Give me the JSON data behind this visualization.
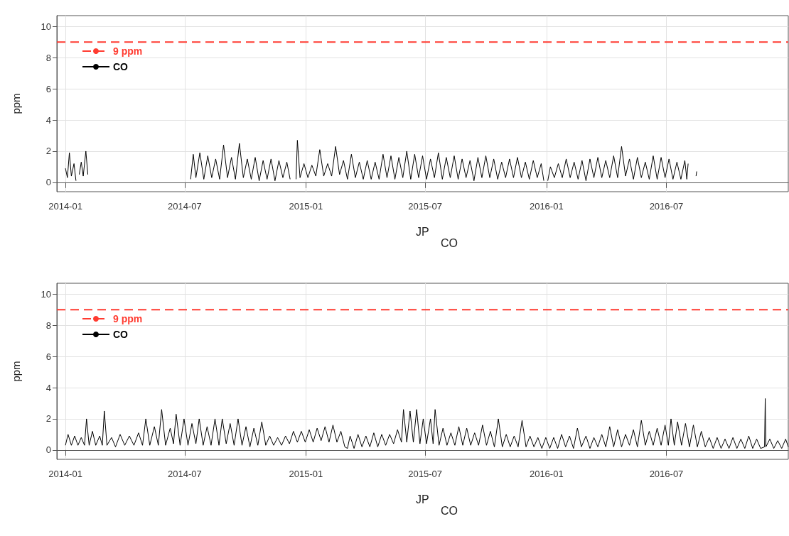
{
  "chart_data": [
    {
      "type": "line",
      "xlabel": "JP",
      "ylabel": "ppm",
      "annotations": [
        "CO"
      ],
      "xlim": [
        "2013-12-19",
        "2017-01-02"
      ],
      "xticks": [
        {
          "value": "2014-01-01",
          "label": "2014-01"
        },
        {
          "value": "2014-07-01",
          "label": "2014-07"
        },
        {
          "value": "2015-01-01",
          "label": "2015-01"
        },
        {
          "value": "2015-07-01",
          "label": "2015-07"
        },
        {
          "value": "2016-01-01",
          "label": "2016-01"
        },
        {
          "value": "2016-07-01",
          "label": "2016-07"
        }
      ],
      "ylim": [
        -0.6,
        10.7
      ],
      "yticks": [
        0,
        2,
        4,
        6,
        8,
        10
      ],
      "grid": true,
      "legend": "top left",
      "line_style": "solid",
      "ref_lines": [
        {
          "axis": "y",
          "value": 9,
          "label": "9 ppm",
          "color": "#ff3b30",
          "line_style": "dashed"
        }
      ],
      "series": [
        {
          "name": "CO",
          "color": "#000000",
          "x": [
            "2014-01-01",
            "2014-01-04",
            "2014-01-07",
            "2014-01-10",
            "2014-01-14",
            "2014-01-17",
            "2014-01-20",
            "2014-01-22",
            "2014-01-25",
            "2014-01-28",
            "2014-02-01",
            "2014-02-04",
            "2014-02-05",
            "2014-07-10",
            "2014-07-14",
            "2014-07-18",
            "2014-07-24",
            "2014-07-30",
            "2014-08-05",
            "2014-08-11",
            "2014-08-17",
            "2014-08-23",
            "2014-08-29",
            "2014-09-04",
            "2014-09-10",
            "2014-09-16",
            "2014-09-22",
            "2014-09-28",
            "2014-10-04",
            "2014-10-10",
            "2014-10-16",
            "2014-10-22",
            "2014-10-28",
            "2014-11-03",
            "2014-11-09",
            "2014-11-15",
            "2014-11-21",
            "2014-11-27",
            "2014-12-03",
            "2014-12-08",
            "2014-12-12",
            "2014-12-17",
            "2014-12-19",
            "2014-12-23",
            "2014-12-29",
            "2015-01-04",
            "2015-01-10",
            "2015-01-16",
            "2015-01-22",
            "2015-01-28",
            "2015-02-03",
            "2015-02-09",
            "2015-02-15",
            "2015-02-21",
            "2015-02-27",
            "2015-03-05",
            "2015-03-11",
            "2015-03-17",
            "2015-03-23",
            "2015-03-29",
            "2015-04-04",
            "2015-04-10",
            "2015-04-16",
            "2015-04-22",
            "2015-04-28",
            "2015-05-04",
            "2015-05-10",
            "2015-05-16",
            "2015-05-22",
            "2015-05-28",
            "2015-06-03",
            "2015-06-09",
            "2015-06-15",
            "2015-06-21",
            "2015-06-27",
            "2015-07-03",
            "2015-07-09",
            "2015-07-15",
            "2015-07-21",
            "2015-07-27",
            "2015-08-02",
            "2015-08-08",
            "2015-08-14",
            "2015-08-20",
            "2015-08-26",
            "2015-09-01",
            "2015-09-07",
            "2015-09-13",
            "2015-09-19",
            "2015-09-25",
            "2015-10-01",
            "2015-10-07",
            "2015-10-13",
            "2015-10-19",
            "2015-10-25",
            "2015-10-31",
            "2015-11-06",
            "2015-11-12",
            "2015-11-18",
            "2015-11-24",
            "2015-11-30",
            "2015-12-06",
            "2015-12-12",
            "2015-12-18",
            "2015-12-24",
            "2015-12-28",
            "2015-12-31",
            "2016-01-03",
            "2016-01-07",
            "2016-01-13",
            "2016-01-19",
            "2016-01-25",
            "2016-01-31",
            "2016-02-06",
            "2016-02-12",
            "2016-02-18",
            "2016-02-24",
            "2016-03-01",
            "2016-03-07",
            "2016-03-13",
            "2016-03-19",
            "2016-03-25",
            "2016-03-31",
            "2016-04-06",
            "2016-04-12",
            "2016-04-18",
            "2016-04-24",
            "2016-04-30",
            "2016-05-06",
            "2016-05-12",
            "2016-05-18",
            "2016-05-24",
            "2016-05-30",
            "2016-06-05",
            "2016-06-11",
            "2016-06-17",
            "2016-06-23",
            "2016-06-29",
            "2016-07-05",
            "2016-07-11",
            "2016-07-17",
            "2016-07-23",
            "2016-07-29",
            "2016-08-01",
            "2016-08-03",
            "2016-08-09",
            "2016-08-15",
            "2016-08-16"
          ],
          "values": [
            0.9,
            0.3,
            1.9,
            0.4,
            1.2,
            0.1,
            null,
            0.5,
            1.3,
            0.4,
            2.0,
            0.5,
            null,
            0.2,
            1.8,
            0.3,
            1.9,
            0.2,
            1.7,
            0.3,
            1.5,
            0.2,
            2.4,
            0.3,
            1.6,
            0.2,
            2.5,
            0.3,
            1.5,
            0.2,
            1.6,
            0.1,
            1.4,
            0.2,
            1.5,
            0.1,
            1.4,
            0.3,
            1.3,
            0.2,
            null,
            0.2,
            2.7,
            0.3,
            1.2,
            0.3,
            1.1,
            0.4,
            2.1,
            0.4,
            1.2,
            0.4,
            2.3,
            0.5,
            1.4,
            0.2,
            1.8,
            0.3,
            1.3,
            0.2,
            1.4,
            0.2,
            1.3,
            0.2,
            1.8,
            0.3,
            1.7,
            0.2,
            1.6,
            0.3,
            2.0,
            0.2,
            1.8,
            0.3,
            1.7,
            0.2,
            1.5,
            0.3,
            1.9,
            0.2,
            1.6,
            0.3,
            1.7,
            0.2,
            1.5,
            0.3,
            1.4,
            0.1,
            1.6,
            0.3,
            1.7,
            0.3,
            1.5,
            0.2,
            1.3,
            0.3,
            1.5,
            0.3,
            1.6,
            0.3,
            1.3,
            0.2,
            1.4,
            0.3,
            1.2,
            0.1,
            null,
            0.1,
            1.0,
            0.3,
            1.2,
            0.3,
            1.5,
            0.3,
            1.3,
            0.2,
            1.4,
            0.1,
            1.5,
            0.3,
            1.6,
            0.3,
            1.4,
            0.3,
            1.7,
            0.3,
            2.3,
            0.4,
            1.5,
            0.2,
            1.6,
            0.3,
            1.3,
            0.2,
            1.7,
            0.2,
            1.6,
            0.3,
            1.5,
            0.2,
            1.3,
            0.2,
            1.4,
            0.2,
            1.2,
            null,
            0.4,
            0.7
          ]
        }
      ]
    },
    {
      "type": "line",
      "xlabel": "JP",
      "ylabel": "ppm",
      "annotations": [
        "CO"
      ],
      "xlim": [
        "2013-12-19",
        "2017-01-02"
      ],
      "xticks": [
        {
          "value": "2014-01-01",
          "label": "2014-01"
        },
        {
          "value": "2014-07-01",
          "label": "2014-07"
        },
        {
          "value": "2015-01-01",
          "label": "2015-01"
        },
        {
          "value": "2015-07-01",
          "label": "2015-07"
        },
        {
          "value": "2016-01-01",
          "label": "2016-01"
        },
        {
          "value": "2016-07-01",
          "label": "2016-07"
        }
      ],
      "ylim": [
        -0.6,
        10.7
      ],
      "yticks": [
        0,
        2,
        4,
        6,
        8,
        10
      ],
      "grid": true,
      "legend": "top left",
      "line_style": "solid",
      "ref_lines": [
        {
          "axis": "y",
          "value": 9,
          "label": "9 ppm",
          "color": "#ff3b30",
          "line_style": "dashed"
        }
      ],
      "series": [
        {
          "name": "CO",
          "color": "#000000",
          "x": [
            "2014-01-01",
            "2014-01-05",
            "2014-01-10",
            "2014-01-15",
            "2014-01-20",
            "2014-01-25",
            "2014-01-30",
            "2014-02-02",
            "2014-02-06",
            "2014-02-11",
            "2014-02-16",
            "2014-02-22",
            "2014-02-26",
            "2014-03-01",
            "2014-03-05",
            "2014-03-12",
            "2014-03-18",
            "2014-03-25",
            "2014-04-01",
            "2014-04-08",
            "2014-04-15",
            "2014-04-22",
            "2014-04-28",
            "2014-05-03",
            "2014-05-09",
            "2014-05-16",
            "2014-05-22",
            "2014-05-27",
            "2014-06-02",
            "2014-06-09",
            "2014-06-14",
            "2014-06-18",
            "2014-06-24",
            "2014-06-30",
            "2014-07-06",
            "2014-07-12",
            "2014-07-18",
            "2014-07-23",
            "2014-07-29",
            "2014-08-04",
            "2014-08-10",
            "2014-08-16",
            "2014-08-22",
            "2014-08-27",
            "2014-09-02",
            "2014-09-08",
            "2014-09-14",
            "2014-09-20",
            "2014-09-26",
            "2014-10-02",
            "2014-10-08",
            "2014-10-14",
            "2014-10-20",
            "2014-10-26",
            "2014-11-01",
            "2014-11-07",
            "2014-11-13",
            "2014-11-19",
            "2014-11-25",
            "2014-12-01",
            "2014-12-07",
            "2014-12-13",
            "2014-12-19",
            "2014-12-25",
            "2014-12-31",
            "2015-01-06",
            "2015-01-12",
            "2015-01-18",
            "2015-01-24",
            "2015-01-30",
            "2015-02-05",
            "2015-02-11",
            "2015-02-17",
            "2015-02-23",
            "2015-03-01",
            "2015-03-05",
            "2015-03-09",
            "2015-03-15",
            "2015-03-21",
            "2015-03-27",
            "2015-04-02",
            "2015-04-08",
            "2015-04-14",
            "2015-04-20",
            "2015-04-26",
            "2015-05-02",
            "2015-05-08",
            "2015-05-14",
            "2015-05-20",
            "2015-05-26",
            "2015-05-29",
            "2015-06-03",
            "2015-06-08",
            "2015-06-13",
            "2015-06-18",
            "2015-06-23",
            "2015-06-28",
            "2015-07-03",
            "2015-07-09",
            "2015-07-13",
            "2015-07-16",
            "2015-07-22",
            "2015-07-28",
            "2015-08-03",
            "2015-08-09",
            "2015-08-15",
            "2015-08-21",
            "2015-08-27",
            "2015-09-02",
            "2015-09-08",
            "2015-09-14",
            "2015-09-20",
            "2015-09-26",
            "2015-10-02",
            "2015-10-08",
            "2015-10-14",
            "2015-10-20",
            "2015-10-26",
            "2015-11-01",
            "2015-11-07",
            "2015-11-13",
            "2015-11-19",
            "2015-11-25",
            "2015-12-01",
            "2015-12-07",
            "2015-12-13",
            "2015-12-19",
            "2015-12-25",
            "2015-12-31",
            "2016-01-06",
            "2016-01-12",
            "2016-01-18",
            "2016-01-24",
            "2016-01-30",
            "2016-02-05",
            "2016-02-11",
            "2016-02-17",
            "2016-02-23",
            "2016-03-01",
            "2016-03-07",
            "2016-03-13",
            "2016-03-19",
            "2016-03-25",
            "2016-03-31",
            "2016-04-06",
            "2016-04-12",
            "2016-04-18",
            "2016-04-24",
            "2016-04-30",
            "2016-05-06",
            "2016-05-12",
            "2016-05-18",
            "2016-05-24",
            "2016-05-30",
            "2016-06-05",
            "2016-06-11",
            "2016-06-17",
            "2016-06-23",
            "2016-06-29",
            "2016-07-04",
            "2016-07-08",
            "2016-07-13",
            "2016-07-18",
            "2016-07-24",
            "2016-07-30",
            "2016-08-05",
            "2016-08-11",
            "2016-08-17",
            "2016-08-23",
            "2016-08-29",
            "2016-09-04",
            "2016-09-10",
            "2016-09-16",
            "2016-09-22",
            "2016-09-28",
            "2016-10-04",
            "2016-10-10",
            "2016-10-16",
            "2016-10-22",
            "2016-10-28",
            "2016-11-03",
            "2016-11-09",
            "2016-11-15",
            "2016-11-21",
            "2016-11-27",
            "2016-11-28",
            "2016-11-29",
            "2016-12-05",
            "2016-12-11",
            "2016-12-17",
            "2016-12-23",
            "2016-12-29",
            "2017-01-02"
          ],
          "values": [
            0.3,
            1.0,
            0.3,
            0.9,
            0.3,
            0.8,
            0.3,
            2.0,
            0.3,
            1.2,
            0.3,
            0.9,
            0.3,
            2.5,
            0.3,
            0.8,
            0.2,
            1.0,
            0.3,
            0.9,
            0.3,
            1.1,
            0.3,
            2.0,
            0.3,
            1.5,
            0.3,
            2.6,
            0.3,
            1.4,
            0.4,
            2.3,
            0.3,
            2.0,
            0.3,
            1.7,
            0.4,
            2.0,
            0.3,
            1.5,
            0.3,
            2.0,
            0.3,
            2.0,
            0.4,
            1.7,
            0.3,
            2.0,
            0.3,
            1.5,
            0.2,
            1.4,
            0.3,
            1.8,
            0.3,
            0.9,
            0.3,
            0.8,
            0.3,
            0.9,
            0.4,
            1.2,
            0.5,
            1.2,
            0.5,
            1.3,
            0.5,
            1.4,
            0.6,
            1.5,
            0.5,
            1.6,
            0.5,
            1.2,
            0.2,
            0.1,
            0.9,
            0.1,
            1.0,
            0.2,
            0.9,
            0.2,
            1.1,
            0.2,
            1.0,
            0.3,
            1.0,
            0.4,
            1.3,
            0.5,
            2.6,
            0.5,
            2.5,
            0.5,
            2.6,
            0.4,
            2.0,
            0.4,
            2.0,
            0.4,
            2.6,
            0.3,
            1.4,
            0.3,
            1.1,
            0.3,
            1.5,
            0.3,
            1.4,
            0.3,
            1.1,
            0.3,
            1.6,
            0.3,
            1.2,
            0.2,
            2.0,
            0.2,
            1.0,
            0.2,
            0.9,
            0.2,
            1.9,
            0.2,
            0.9,
            0.2,
            0.8,
            0.1,
            0.8,
            0.1,
            0.8,
            0.1,
            1.0,
            0.2,
            0.9,
            0.1,
            1.4,
            0.2,
            0.9,
            0.1,
            0.8,
            0.2,
            1.0,
            0.2,
            1.5,
            0.2,
            1.3,
            0.2,
            1.0,
            0.3,
            1.3,
            0.2,
            1.9,
            0.3,
            1.2,
            0.3,
            1.4,
            0.3,
            1.6,
            0.3,
            2.0,
            0.3,
            1.8,
            0.3,
            1.7,
            0.2,
            1.6,
            0.2,
            1.2,
            0.2,
            0.8,
            0.1,
            0.8,
            0.1,
            0.7,
            0.1,
            0.8,
            0.1,
            0.7,
            0.1,
            0.9,
            0.1,
            0.7,
            0.1,
            0.2,
            3.3,
            0.2,
            0.7,
            0.1,
            0.6,
            0.1,
            0.7,
            0.2
          ]
        }
      ]
    }
  ]
}
